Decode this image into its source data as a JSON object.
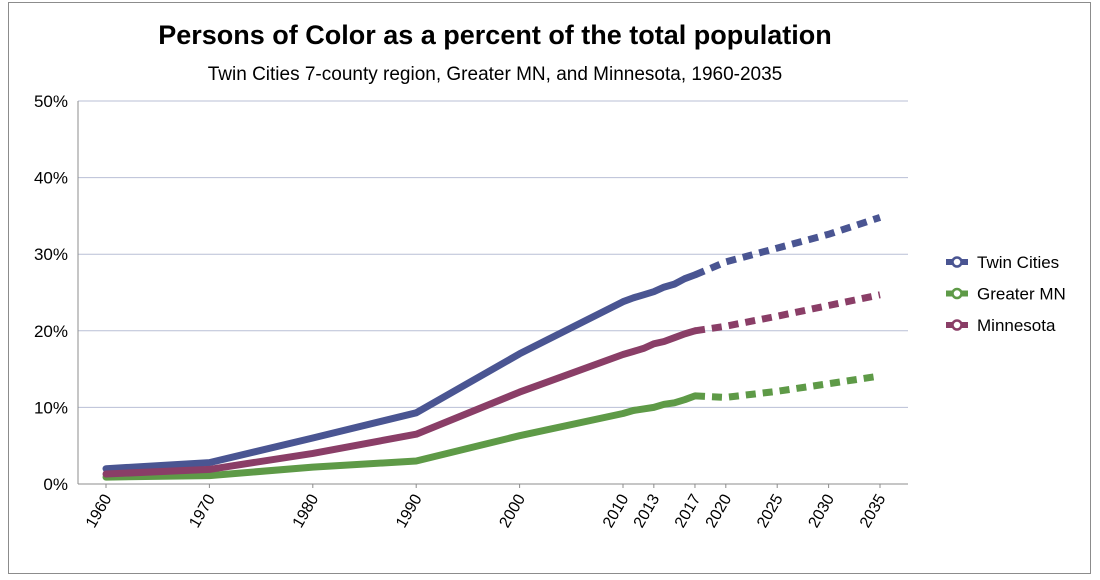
{
  "chart_data": {
    "type": "line",
    "title": "Persons of Color as a percent of the total population",
    "subtitle": "Twin Cities 7-county region, Greater MN, and Minnesota, 1960-2035",
    "xlabel": "",
    "ylabel": "",
    "categories": [
      "1960",
      "1970",
      "1980",
      "1990",
      "2000",
      "2010",
      "2013",
      "2017",
      "2020",
      "2025",
      "2030",
      "2035"
    ],
    "ylim": [
      0,
      50
    ],
    "yticks": [
      "0%",
      "10%",
      "20%",
      "30%",
      "40%",
      "50%"
    ],
    "grid": true,
    "legend_position": "right",
    "series": [
      {
        "name": "Twin Cities",
        "color": "#4a5592",
        "actual": [
          [
            1960,
            2.0
          ],
          [
            1970,
            2.8
          ],
          [
            1980,
            6.0
          ],
          [
            1990,
            9.3
          ],
          [
            2000,
            17.0
          ],
          [
            2010,
            23.8
          ],
          [
            2011,
            24.3
          ],
          [
            2012,
            24.7
          ],
          [
            2013,
            25.1
          ],
          [
            2014,
            25.7
          ],
          [
            2015,
            26.1
          ],
          [
            2016,
            26.8
          ],
          [
            2017,
            27.3
          ]
        ],
        "projected": [
          [
            2017,
            27.3
          ],
          [
            2020,
            29.0
          ],
          [
            2025,
            30.8
          ],
          [
            2030,
            32.6
          ],
          [
            2035,
            34.8
          ]
        ]
      },
      {
        "name": "Greater MN",
        "color": "#5e9a47",
        "actual": [
          [
            1960,
            0.9
          ],
          [
            1970,
            1.1
          ],
          [
            1980,
            2.2
          ],
          [
            1990,
            3.0
          ],
          [
            2000,
            6.3
          ],
          [
            2010,
            9.2
          ],
          [
            2011,
            9.6
          ],
          [
            2012,
            9.8
          ],
          [
            2013,
            10.0
          ],
          [
            2014,
            10.4
          ],
          [
            2015,
            10.6
          ],
          [
            2016,
            11.0
          ],
          [
            2017,
            11.5
          ]
        ],
        "projected": [
          [
            2017,
            11.5
          ],
          [
            2020,
            11.3
          ],
          [
            2025,
            12.1
          ],
          [
            2030,
            13.1
          ],
          [
            2035,
            14.1
          ]
        ]
      },
      {
        "name": "Minnesota",
        "color": "#8a3e67",
        "actual": [
          [
            1960,
            1.3
          ],
          [
            1970,
            1.9
          ],
          [
            1980,
            4.0
          ],
          [
            1990,
            6.5
          ],
          [
            2000,
            12.0
          ],
          [
            2010,
            16.9
          ],
          [
            2011,
            17.3
          ],
          [
            2012,
            17.7
          ],
          [
            2013,
            18.3
          ],
          [
            2014,
            18.6
          ],
          [
            2015,
            19.1
          ],
          [
            2016,
            19.6
          ],
          [
            2017,
            20.0
          ]
        ],
        "projected": [
          [
            2017,
            20.0
          ],
          [
            2020,
            20.6
          ],
          [
            2025,
            21.9
          ],
          [
            2030,
            23.3
          ],
          [
            2035,
            24.7
          ]
        ]
      }
    ]
  }
}
